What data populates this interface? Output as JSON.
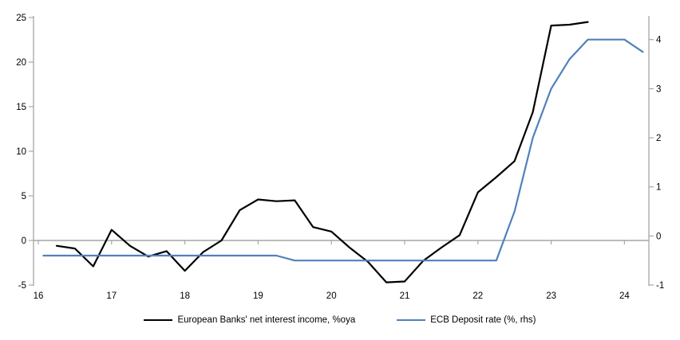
{
  "chart_data": {
    "type": "line",
    "title": "",
    "grid": "zero-line-only",
    "legend_position": "bottom",
    "x_axis": {
      "tick_labels": [
        "16",
        "17",
        "18",
        "19",
        "20",
        "21",
        "22",
        "23",
        "24"
      ],
      "tick_values": [
        16,
        17,
        18,
        19,
        20,
        21,
        22,
        23,
        24
      ],
      "range": [
        16,
        24.3
      ]
    },
    "left_axis": {
      "tick_labels": [
        "25",
        "20",
        "15",
        "10",
        "5",
        "0",
        "-5"
      ],
      "tick_values": [
        25,
        20,
        15,
        10,
        5,
        0,
        -5
      ],
      "range": [
        -5,
        25
      ]
    },
    "right_axis": {
      "tick_labels": [
        "4",
        "3",
        "2",
        "1",
        "0",
        "-1"
      ],
      "tick_values": [
        4,
        3,
        2,
        1,
        0,
        -1
      ],
      "range": [
        -1,
        4.45
      ]
    },
    "series": [
      {
        "name": "European Banks' net interest income, %oya",
        "axis": "left",
        "color": "#000000",
        "x": [
          16.25,
          16.5,
          16.75,
          17.0,
          17.25,
          17.5,
          17.75,
          18.0,
          18.25,
          18.5,
          18.75,
          19.0,
          19.25,
          19.5,
          19.75,
          20.0,
          20.25,
          20.5,
          20.75,
          21.0,
          21.25,
          21.5,
          21.75,
          22.0,
          22.25,
          22.5,
          22.75,
          23.0,
          23.25,
          23.5
        ],
        "values": [
          -0.6,
          -0.9,
          -2.9,
          1.2,
          -0.6,
          -1.8,
          -1.2,
          -3.4,
          -1.3,
          0.0,
          3.4,
          4.6,
          4.4,
          4.5,
          1.5,
          1.0,
          -0.8,
          -2.4,
          -4.7,
          -4.6,
          -2.3,
          -0.8,
          0.6,
          5.4,
          7.1,
          8.9,
          14.4,
          24.1,
          24.2,
          24.5
        ]
      },
      {
        "name": "ECB Deposit rate (%, rhs)",
        "axis": "right",
        "color": "#4f81bd",
        "x": [
          16.07,
          19.25,
          19.5,
          22.25,
          22.5,
          22.75,
          23.0,
          23.25,
          23.5,
          24.0,
          24.25
        ],
        "values": [
          -0.4,
          -0.4,
          -0.5,
          -0.5,
          0.5,
          2.0,
          3.0,
          3.6,
          4.0,
          4.0,
          3.75
        ]
      }
    ]
  },
  "colors": {
    "axis": "#a6a6a6",
    "gridline": "#a6a6a6",
    "text": "#000000",
    "background": "#ffffff"
  }
}
